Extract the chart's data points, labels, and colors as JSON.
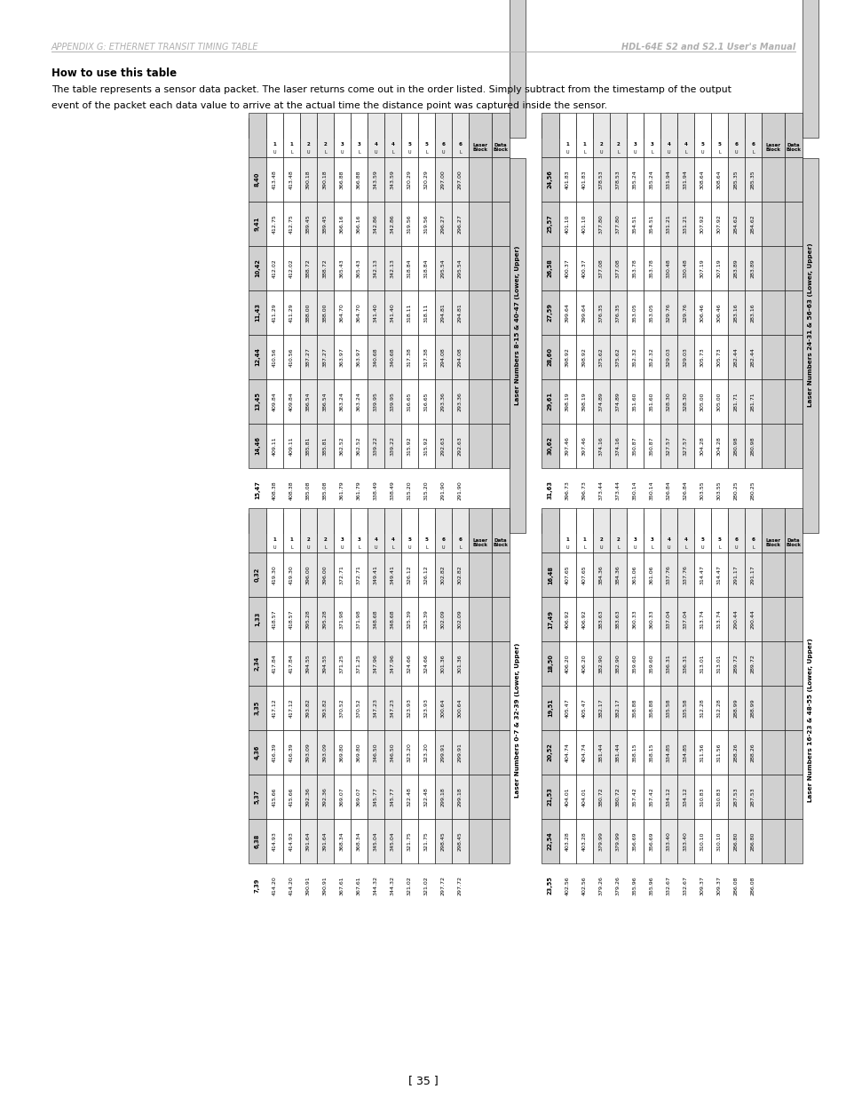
{
  "header_left": "APPENDIX G: ETHERNET TRANSIT TIMING TABLE",
  "header_right": "HDL-64E S2 and S2.1 User's Manual",
  "page_number": "[ 35 ]",
  "how_to_use_title": "How to use this table",
  "how_to_use_text1": "The table represents a sensor data packet. The laser returns come out in the order listed. Simply subtract from the timestamp of the output",
  "how_to_use_text2": "event of the packet each data value to arrive at the actual time the distance point was captured inside the sensor.",
  "table1_title": "Laser Numbers 8-15 & 40-47 (Lower, Upper)",
  "table1_laser_headers": [
    "8,40",
    "9,41",
    "10,42",
    "11,43",
    "12,44",
    "13,45",
    "14,46",
    "15,47"
  ],
  "table1_rows": [
    [
      1,
      "Upper",
      413.48,
      412.75,
      412.02,
      411.29,
      410.56,
      409.84,
      409.11,
      408.38
    ],
    [
      1,
      "Lower",
      413.48,
      412.75,
      412.02,
      411.29,
      410.56,
      409.84,
      409.11,
      408.38
    ],
    [
      2,
      "Upper",
      390.18,
      389.45,
      388.72,
      388.0,
      387.27,
      386.54,
      385.81,
      385.08
    ],
    [
      2,
      "Lower",
      390.18,
      389.45,
      388.72,
      388.0,
      387.27,
      386.54,
      385.81,
      385.08
    ],
    [
      3,
      "Upper",
      366.88,
      366.16,
      365.43,
      364.7,
      363.97,
      363.24,
      362.52,
      361.79
    ],
    [
      3,
      "Lower",
      366.88,
      366.16,
      365.43,
      364.7,
      363.97,
      363.24,
      362.52,
      361.79
    ],
    [
      4,
      "Upper",
      343.59,
      342.86,
      342.13,
      341.4,
      340.68,
      339.95,
      339.22,
      338.49
    ],
    [
      4,
      "Lower",
      343.59,
      342.86,
      342.13,
      341.4,
      340.68,
      339.95,
      339.22,
      338.49
    ],
    [
      5,
      "Upper",
      320.29,
      319.56,
      318.84,
      318.11,
      317.38,
      316.65,
      315.92,
      315.2
    ],
    [
      5,
      "Lower",
      320.29,
      319.56,
      318.84,
      318.11,
      317.38,
      316.65,
      315.92,
      315.2
    ],
    [
      6,
      "Upper",
      297.0,
      296.27,
      295.54,
      294.81,
      294.08,
      293.36,
      292.63,
      291.9
    ],
    [
      6,
      "Lower",
      297.0,
      296.27,
      295.54,
      294.81,
      294.08,
      293.36,
      292.63,
      291.9
    ]
  ],
  "table2_title": "Laser Numbers 24-31 & 56-63 (Lower, Upper)",
  "table2_laser_headers": [
    "24,56",
    "25,57",
    "26,58",
    "27,59",
    "28,60",
    "29,61",
    "30,62",
    "31,63"
  ],
  "table2_rows": [
    [
      1,
      "Upper",
      401.83,
      401.1,
      400.37,
      399.64,
      398.92,
      398.19,
      397.46,
      396.73
    ],
    [
      1,
      "Lower",
      401.83,
      401.1,
      400.37,
      399.64,
      398.92,
      398.19,
      397.46,
      396.73
    ],
    [
      2,
      "Upper",
      378.53,
      377.8,
      377.08,
      376.35,
      375.62,
      374.89,
      374.16,
      373.44
    ],
    [
      2,
      "Lower",
      378.53,
      377.8,
      377.08,
      376.35,
      375.62,
      374.89,
      374.16,
      373.44
    ],
    [
      3,
      "Upper",
      355.24,
      354.51,
      353.78,
      353.05,
      352.32,
      351.6,
      350.87,
      350.14
    ],
    [
      3,
      "Lower",
      355.24,
      354.51,
      353.78,
      353.05,
      352.32,
      351.6,
      350.87,
      350.14
    ],
    [
      4,
      "Upper",
      331.94,
      331.21,
      330.48,
      329.76,
      329.03,
      328.3,
      327.57,
      326.84
    ],
    [
      4,
      "Lower",
      331.94,
      331.21,
      330.48,
      329.76,
      329.03,
      328.3,
      327.57,
      326.84
    ],
    [
      5,
      "Upper",
      308.64,
      307.92,
      307.19,
      306.46,
      305.73,
      305.0,
      304.28,
      303.55
    ],
    [
      5,
      "Lower",
      308.64,
      307.92,
      307.19,
      306.46,
      305.73,
      305.0,
      304.28,
      303.55
    ],
    [
      6,
      "Upper",
      285.35,
      284.62,
      283.89,
      283.16,
      282.44,
      281.71,
      280.98,
      280.25
    ],
    [
      6,
      "Lower",
      285.35,
      284.62,
      283.89,
      283.16,
      282.44,
      281.71,
      280.98,
      280.25
    ]
  ],
  "table3_title": "Laser Numbers 0-7 & 32-39 (Lower, Upper)",
  "table3_laser_headers": [
    "0,32",
    "1,33",
    "2,34",
    "3,35",
    "4,36",
    "5,37",
    "6,38",
    "7,39"
  ],
  "table3_rows": [
    [
      1,
      "Upper",
      419.3,
      418.57,
      417.84,
      417.12,
      416.39,
      415.66,
      414.93,
      414.2
    ],
    [
      1,
      "Lower",
      419.3,
      418.57,
      417.84,
      417.12,
      416.39,
      415.66,
      414.93,
      414.2
    ],
    [
      2,
      "Upper",
      396.0,
      395.28,
      394.55,
      393.82,
      393.09,
      392.36,
      391.64,
      390.91
    ],
    [
      2,
      "Lower",
      396.0,
      395.28,
      394.55,
      393.82,
      393.09,
      392.36,
      391.64,
      390.91
    ],
    [
      3,
      "Upper",
      372.71,
      371.98,
      371.25,
      370.52,
      369.8,
      369.07,
      368.34,
      367.61
    ],
    [
      3,
      "Lower",
      372.71,
      371.98,
      371.25,
      370.52,
      369.8,
      369.07,
      368.34,
      367.61
    ],
    [
      4,
      "Upper",
      349.41,
      348.68,
      347.96,
      347.23,
      346.5,
      345.77,
      345.04,
      344.32
    ],
    [
      4,
      "Lower",
      349.41,
      348.68,
      347.96,
      347.23,
      346.5,
      345.77,
      345.04,
      344.32
    ],
    [
      5,
      "Upper",
      326.12,
      325.39,
      324.66,
      323.93,
      323.2,
      322.48,
      321.75,
      321.02
    ],
    [
      5,
      "Lower",
      326.12,
      325.39,
      324.66,
      323.93,
      323.2,
      322.48,
      321.75,
      321.02
    ],
    [
      6,
      "Upper",
      302.82,
      302.09,
      301.36,
      300.64,
      299.91,
      299.18,
      298.45,
      297.72
    ],
    [
      6,
      "Lower",
      302.82,
      302.09,
      301.36,
      300.64,
      299.91,
      299.18,
      298.45,
      297.72
    ]
  ],
  "table4_title": "Laser Numbers 16-23 & 48-55 (Lower, Upper)",
  "table4_laser_headers": [
    "16,48",
    "17,49",
    "18,50",
    "19,51",
    "20,52",
    "21,53",
    "22,54",
    "23,55"
  ],
  "table4_rows": [
    [
      1,
      "Upper",
      407.65,
      406.92,
      406.2,
      405.47,
      404.74,
      404.01,
      403.28,
      402.56
    ],
    [
      1,
      "Lower",
      407.65,
      406.92,
      406.2,
      405.47,
      404.74,
      404.01,
      403.28,
      402.56
    ],
    [
      2,
      "Upper",
      384.36,
      383.63,
      382.9,
      382.17,
      381.44,
      380.72,
      379.99,
      379.26
    ],
    [
      2,
      "Lower",
      384.36,
      383.63,
      382.9,
      382.17,
      381.44,
      380.72,
      379.99,
      379.26
    ],
    [
      3,
      "Upper",
      361.06,
      360.33,
      359.6,
      358.88,
      358.15,
      357.42,
      356.69,
      355.96
    ],
    [
      3,
      "Lower",
      361.06,
      360.33,
      359.6,
      358.88,
      358.15,
      357.42,
      356.69,
      355.96
    ],
    [
      4,
      "Upper",
      337.76,
      337.04,
      336.31,
      335.58,
      334.85,
      334.12,
      333.4,
      332.67
    ],
    [
      4,
      "Lower",
      337.76,
      337.04,
      336.31,
      335.58,
      334.85,
      334.12,
      333.4,
      332.67
    ],
    [
      5,
      "Upper",
      314.47,
      313.74,
      313.01,
      312.28,
      311.56,
      310.83,
      310.1,
      309.37
    ],
    [
      5,
      "Lower",
      314.47,
      313.74,
      313.01,
      312.28,
      311.56,
      310.83,
      310.1,
      309.37
    ],
    [
      6,
      "Upper",
      291.17,
      290.44,
      289.72,
      288.99,
      288.26,
      287.53,
      286.8,
      286.08
    ],
    [
      6,
      "Lower",
      291.17,
      290.44,
      289.72,
      288.99,
      288.26,
      287.53,
      286.8,
      286.08
    ]
  ]
}
